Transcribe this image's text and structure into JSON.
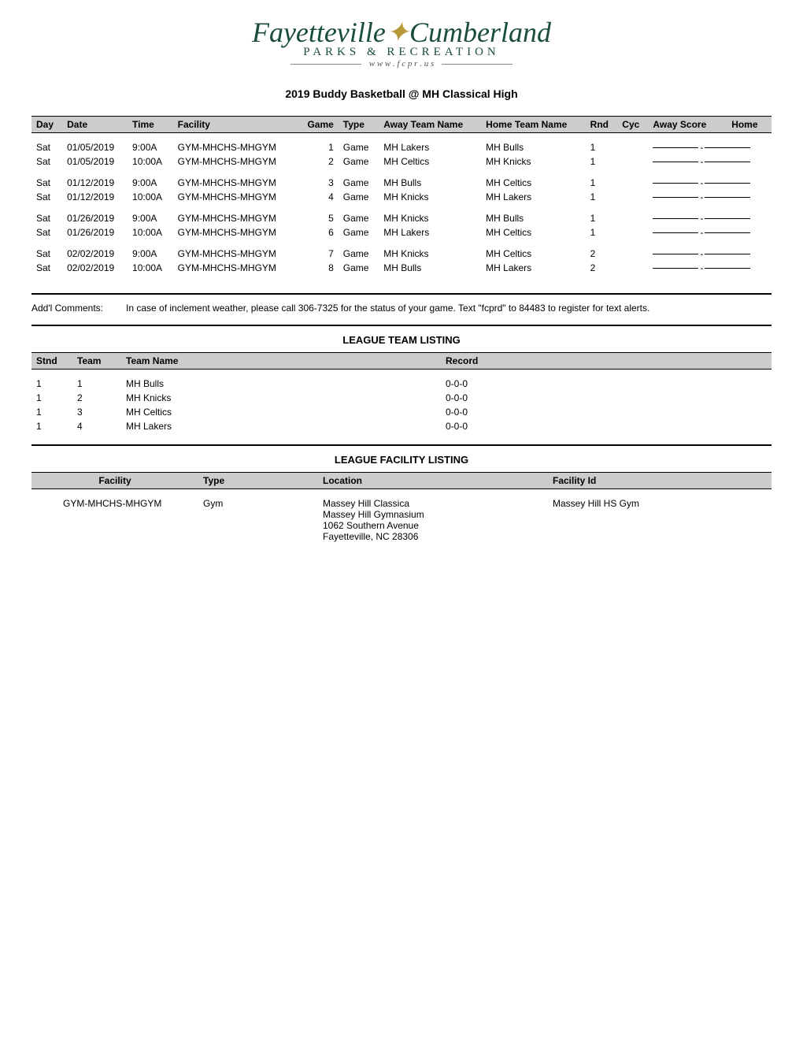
{
  "logo": {
    "main_left": "Fayetteville",
    "main_right": "Cumberland",
    "amp": "✦",
    "sub": "PARKS  &  RECREATION",
    "url": "w w w . f c p r . u s"
  },
  "page_title": "2019 Buddy Basketball @ MH Classical High",
  "schedule": {
    "headers": {
      "day": "Day",
      "date": "Date",
      "time": "Time",
      "facility": "Facility",
      "game": "Game",
      "type": "Type",
      "away_team": "Away Team Name",
      "home_team": "Home Team Name",
      "rnd": "Rnd",
      "cyc": "Cyc",
      "away_score": "Away Score",
      "home_score": "Home"
    },
    "groups": [
      [
        {
          "day": "Sat",
          "date": "01/05/2019",
          "time": "9:00A",
          "facility": "GYM-MHCHS-MHGYM",
          "game": "1",
          "type": "Game",
          "away": "MH Lakers",
          "home": "MH Bulls",
          "rnd": "1"
        },
        {
          "day": "Sat",
          "date": "01/05/2019",
          "time": "10:00A",
          "facility": "GYM-MHCHS-MHGYM",
          "game": "2",
          "type": "Game",
          "away": "MH Celtics",
          "home": "MH Knicks",
          "rnd": "1"
        }
      ],
      [
        {
          "day": "Sat",
          "date": "01/12/2019",
          "time": "9:00A",
          "facility": "GYM-MHCHS-MHGYM",
          "game": "3",
          "type": "Game",
          "away": "MH Bulls",
          "home": "MH Celtics",
          "rnd": "1"
        },
        {
          "day": "Sat",
          "date": "01/12/2019",
          "time": "10:00A",
          "facility": "GYM-MHCHS-MHGYM",
          "game": "4",
          "type": "Game",
          "away": "MH Knicks",
          "home": "MH Lakers",
          "rnd": "1"
        }
      ],
      [
        {
          "day": "Sat",
          "date": "01/26/2019",
          "time": "9:00A",
          "facility": "GYM-MHCHS-MHGYM",
          "game": "5",
          "type": "Game",
          "away": "MH Knicks",
          "home": "MH Bulls",
          "rnd": "1"
        },
        {
          "day": "Sat",
          "date": "01/26/2019",
          "time": "10:00A",
          "facility": "GYM-MHCHS-MHGYM",
          "game": "6",
          "type": "Game",
          "away": "MH Lakers",
          "home": "MH Celtics",
          "rnd": "1"
        }
      ],
      [
        {
          "day": "Sat",
          "date": "02/02/2019",
          "time": "9:00A",
          "facility": "GYM-MHCHS-MHGYM",
          "game": "7",
          "type": "Game",
          "away": "MH Knicks",
          "home": "MH Celtics",
          "rnd": "2"
        },
        {
          "day": "Sat",
          "date": "02/02/2019",
          "time": "10:00A",
          "facility": "GYM-MHCHS-MHGYM",
          "game": "8",
          "type": "Game",
          "away": "MH Bulls",
          "home": "MH Lakers",
          "rnd": "2"
        }
      ]
    ]
  },
  "comments": {
    "label": "Add'l Comments:",
    "text": "In case of inclement weather, please call 306-7325 for the status of your game. Text \"fcprd\" to 84483 to register for text alerts."
  },
  "team_listing": {
    "title": "LEAGUE TEAM LISTING",
    "headers": {
      "stnd": "Stnd",
      "team": "Team",
      "team_name": "Team Name",
      "record": "Record"
    },
    "rows": [
      {
        "stnd": "1",
        "team": "1",
        "name": "MH Bulls",
        "record": "0-0-0"
      },
      {
        "stnd": "1",
        "team": "2",
        "name": "MH Knicks",
        "record": "0-0-0"
      },
      {
        "stnd": "1",
        "team": "3",
        "name": "MH Celtics",
        "record": "0-0-0"
      },
      {
        "stnd": "1",
        "team": "4",
        "name": "MH Lakers",
        "record": "0-0-0"
      }
    ]
  },
  "facility_listing": {
    "title": "LEAGUE FACILITY LISTING",
    "headers": {
      "facility": "Facility",
      "type": "Type",
      "location": "Location",
      "facility_id": "Facility Id"
    },
    "rows": [
      {
        "facility": "GYM-MHCHS-MHGYM",
        "type": "Gym",
        "location_lines": [
          "Massey Hill Classica",
          "Massey Hill Gymnasium",
          "1062 Southern Avenue",
          "Fayetteville, NC  28306"
        ],
        "facility_id": "Massey Hill HS Gym"
      }
    ]
  }
}
